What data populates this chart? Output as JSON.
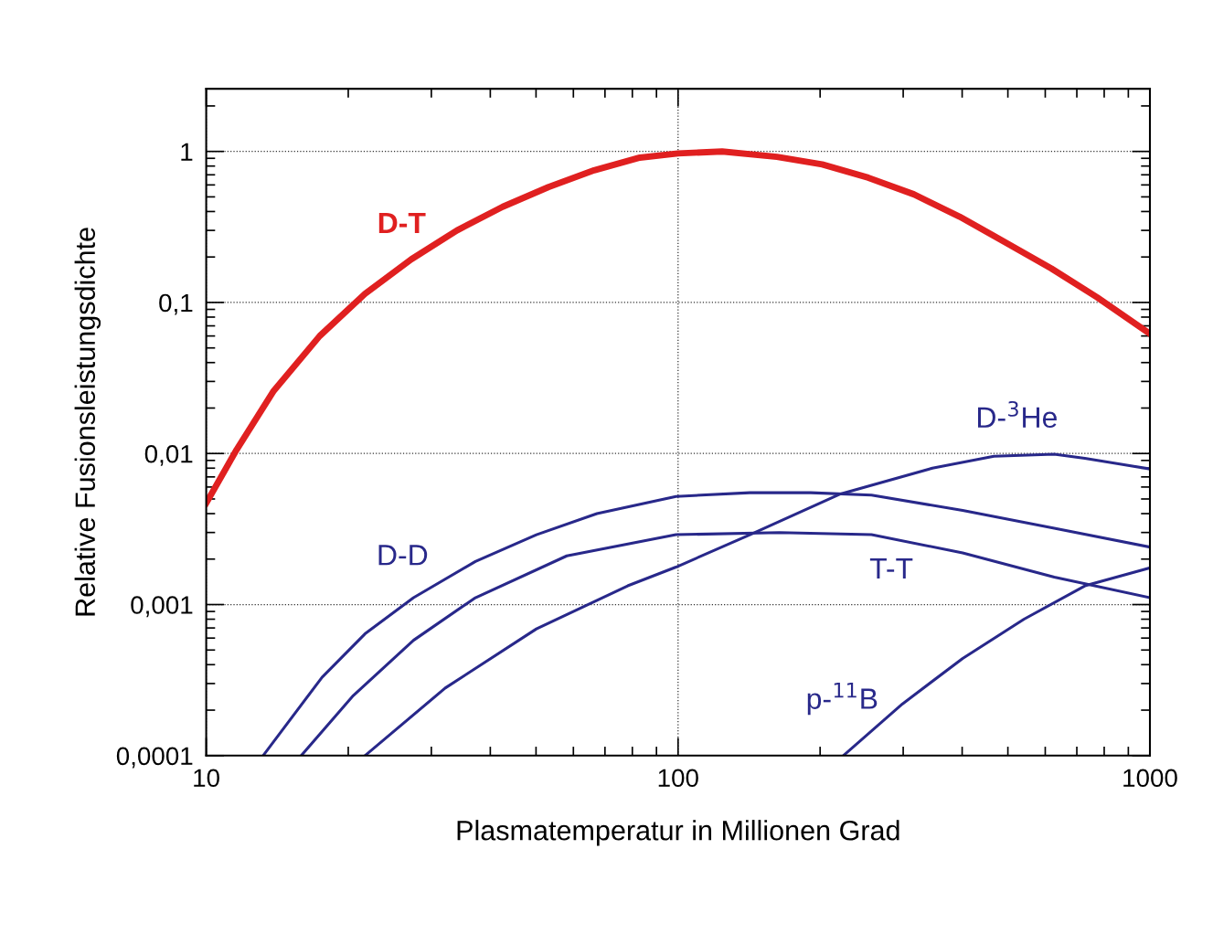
{
  "chart_data": {
    "type": "line",
    "xlabel": "Plasmatemperatur in Millionen Grad",
    "ylabel": "Relative Fusionsleistungsdichte",
    "log": "xy",
    "grid": true,
    "legend": false,
    "marker": "none",
    "line_style": "solid",
    "xlim": [
      10,
      1000
    ],
    "xticks": [
      10,
      100,
      1000
    ],
    "ylim": [
      0.0001,
      2.6
    ],
    "yticks": [
      {
        "value": 0.0001,
        "label": "0,0001"
      },
      {
        "value": 0.001,
        "label": "0,001"
      },
      {
        "value": 0.01,
        "label": "0,01"
      },
      {
        "value": 0.1,
        "label": "0,1"
      },
      {
        "value": 1,
        "label": "1"
      }
    ],
    "series": [
      {
        "name": "D-T",
        "color": "#e02020",
        "x": [
          10,
          11.6,
          13.9,
          17.4,
          21.7,
          27.2,
          34.0,
          42.5,
          53.1,
          66.4,
          83.0,
          100,
          124,
          162,
          202,
          253,
          316,
          395,
          494,
          618,
          773,
          1000
        ],
        "values": [
          0.0047,
          0.0106,
          0.026,
          0.06,
          0.114,
          0.193,
          0.3,
          0.43,
          0.58,
          0.75,
          0.91,
          0.97,
          1.0,
          0.92,
          0.82,
          0.67,
          0.52,
          0.37,
          0.25,
          0.168,
          0.108,
          0.062
        ]
      },
      {
        "name": "D-D",
        "color": "#28288a",
        "x": [
          13.2,
          17.6,
          21.7,
          27.5,
          37.2,
          50.1,
          67.3,
          99,
          142,
          191,
          257,
          401,
          627,
          1000
        ],
        "values": [
          0.0001,
          0.00033,
          0.00064,
          0.00111,
          0.00193,
          0.0029,
          0.004,
          0.0052,
          0.0055,
          0.0055,
          0.0053,
          0.0042,
          0.0032,
          0.0024
        ]
      },
      {
        "name": "T-T",
        "color": "#28288a",
        "x": [
          15.9,
          20.5,
          27.5,
          37.2,
          58.1,
          99,
          164,
          257,
          401,
          627,
          1000
        ],
        "values": [
          0.0001,
          0.00025,
          0.00058,
          0.00111,
          0.0021,
          0.0029,
          0.003,
          0.0029,
          0.0022,
          0.00152,
          0.00111
        ]
      },
      {
        "name": "D-$^{3}$He",
        "color": "#28288a",
        "x": [
          21.7,
          32.1,
          50.1,
          78.2,
          99,
          142,
          221,
          346,
          467,
          627,
          728,
          1000
        ],
        "values": [
          0.0001,
          0.00028,
          0.00069,
          0.00133,
          0.00177,
          0.0029,
          0.0054,
          0.008,
          0.0096,
          0.0099,
          0.0093,
          0.0079
        ]
      },
      {
        "name": "p-$^{11}$B",
        "color": "#28288a",
        "x": [
          224,
          299,
          401,
          541,
          728,
          1000
        ],
        "values": [
          0.0001,
          0.00022,
          0.00044,
          0.0008,
          0.00133,
          0.00175
        ]
      }
    ]
  }
}
